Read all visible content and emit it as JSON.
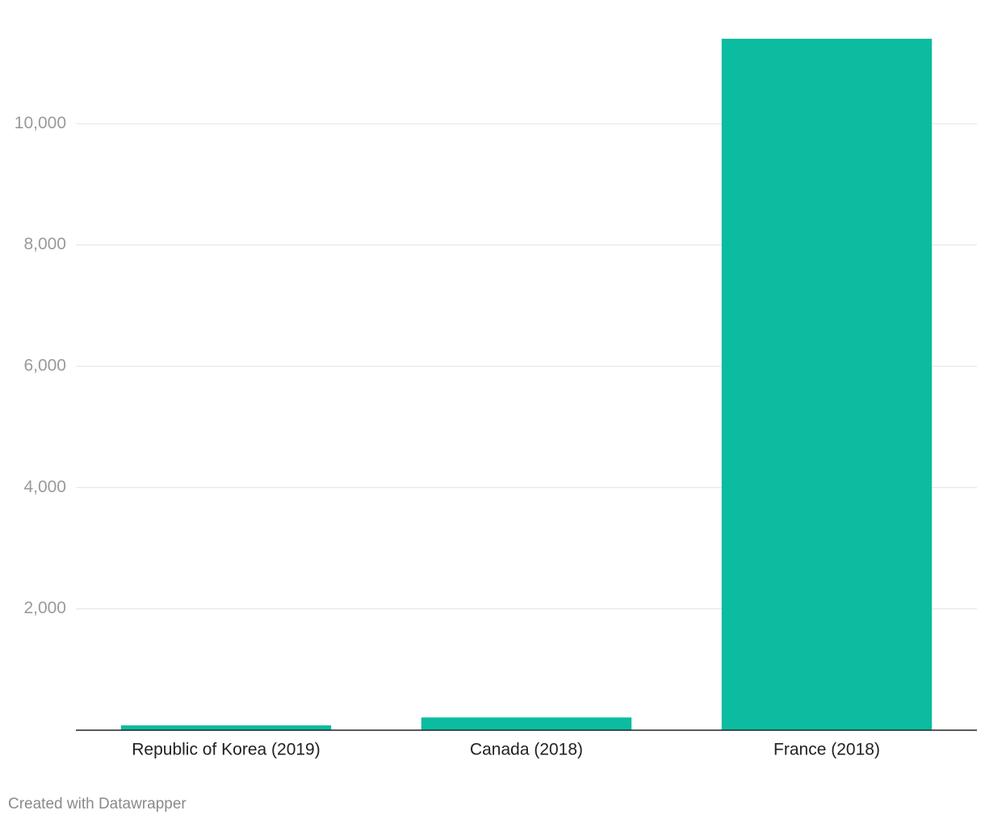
{
  "chart_data": {
    "type": "bar",
    "categories": [
      "Republic of Korea (2019)",
      "Canada (2018)",
      "France (2018)"
    ],
    "values": [
      80,
      210,
      11400
    ],
    "color": "#0bbca0",
    "ylim": [
      0,
      11400
    ],
    "yticks": [
      {
        "value": 2000,
        "label": "2,000"
      },
      {
        "value": 4000,
        "label": "4,000"
      },
      {
        "value": 6000,
        "label": "6,000"
      },
      {
        "value": 8000,
        "label": "8,000"
      },
      {
        "value": 10000,
        "label": "10,000"
      }
    ],
    "grid": true,
    "credit": "Created with Datawrapper"
  }
}
